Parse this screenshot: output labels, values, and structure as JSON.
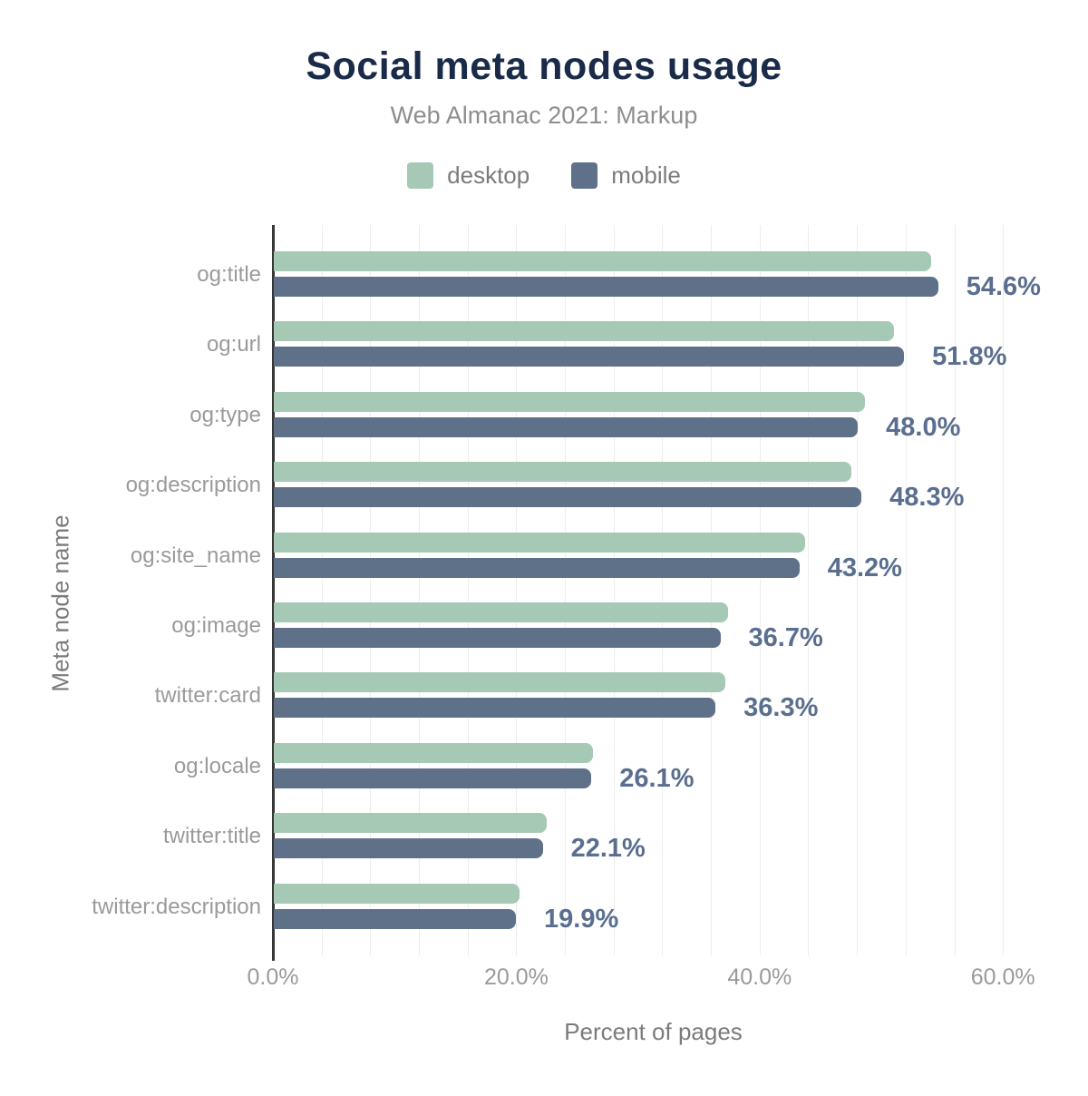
{
  "chart": {
    "title": "Social meta nodes usage",
    "subtitle": "Web Almanac 2021: Markup",
    "xlabel": "Percent of pages",
    "ylabel": "Meta node name"
  },
  "colors": {
    "desktop_bar": "#a5c9b5",
    "mobile_bar": "#5e7189",
    "value_label": "#5a6e8f",
    "title": "#1a2b49",
    "axis_line": "#373737",
    "gridline": "#ededed",
    "secondary_text": "#9a9a9a"
  },
  "chart_data": {
    "type": "bar",
    "orientation": "horizontal",
    "title": "Social meta nodes usage",
    "subtitle": "Web Almanac 2021: Markup",
    "xlabel": "Percent of pages",
    "ylabel": "Meta node name",
    "categories": [
      "og:title",
      "og:url",
      "og:type",
      "og:description",
      "og:site_name",
      "og:image",
      "twitter:card",
      "og:locale",
      "twitter:title",
      "twitter:description"
    ],
    "series": [
      {
        "name": "desktop",
        "color": "#a5c9b5",
        "values": [
          54.0,
          51.0,
          48.6,
          47.5,
          43.7,
          37.3,
          37.1,
          26.2,
          22.4,
          20.2
        ]
      },
      {
        "name": "mobile",
        "color": "#5e7189",
        "values": [
          54.6,
          51.8,
          48.0,
          48.3,
          43.2,
          36.7,
          36.3,
          26.1,
          22.1,
          19.9
        ]
      }
    ],
    "value_labels": [
      "54.6%",
      "51.8%",
      "48.0%",
      "48.3%",
      "43.2%",
      "36.7%",
      "36.3%",
      "26.1%",
      "22.1%",
      "19.9%"
    ],
    "value_labels_series": "mobile",
    "x_ticks": [
      {
        "value": 0,
        "label": "0.0%"
      },
      {
        "value": 20,
        "label": "20.0%"
      },
      {
        "value": 40,
        "label": "40.0%"
      },
      {
        "value": 60,
        "label": "60.0%"
      }
    ],
    "xlim": [
      0,
      62.4
    ],
    "gridline_step": 4,
    "grid": true,
    "legend_position": "top"
  }
}
